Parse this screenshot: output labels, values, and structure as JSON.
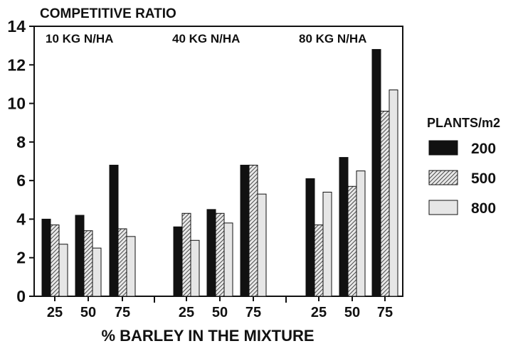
{
  "chart_data": {
    "type": "bar",
    "ylabel": "COMPETITIVE RATIO",
    "xlabel": "% BARLEY IN THE MIXTURE",
    "ylim": [
      0,
      14
    ],
    "yticks": [
      0,
      2,
      4,
      6,
      8,
      10,
      12,
      14
    ],
    "grid": false,
    "legend_title": "PLANTS/m2",
    "legend_position": "right",
    "categories": [
      "25",
      "50",
      "75"
    ],
    "series": [
      {
        "name": "200",
        "fill": "black",
        "color": "#111111"
      },
      {
        "name": "500",
        "fill": "hatched",
        "color": "#8a8a8a"
      },
      {
        "name": "800",
        "fill": "light",
        "color": "#e6e6e6"
      }
    ],
    "panels": [
      {
        "label": "10 KG N/HA",
        "values": [
          [
            4.0,
            3.7,
            2.7
          ],
          [
            4.2,
            3.4,
            2.5
          ],
          [
            6.8,
            3.5,
            3.1
          ]
        ]
      },
      {
        "label": "40 KG N/HA",
        "values": [
          [
            3.6,
            4.3,
            2.9
          ],
          [
            4.5,
            4.3,
            3.8
          ],
          [
            6.8,
            6.8,
            5.3
          ]
        ]
      },
      {
        "label": "80 KG N/HA",
        "values": [
          [
            6.1,
            3.7,
            5.4
          ],
          [
            7.2,
            5.7,
            6.5
          ],
          [
            12.8,
            9.6,
            10.7
          ]
        ]
      }
    ]
  }
}
